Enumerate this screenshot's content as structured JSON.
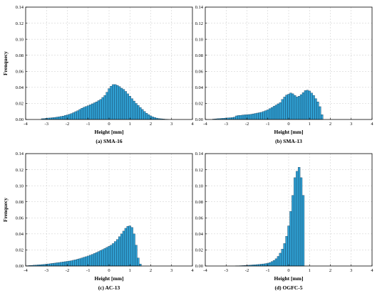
{
  "chart_data": [
    {
      "type": "bar",
      "caption": "(a) SMA-16",
      "xlabel": "Height [mm]",
      "ylabel": "Frenquecy",
      "xlim": [
        -4,
        4
      ],
      "ylim": [
        0,
        0.14
      ],
      "xticks": [
        -4,
        -3,
        -2,
        -1,
        0,
        1,
        2,
        3,
        4
      ],
      "yticks": [
        "0.00",
        "0.02",
        "0.04",
        "0.06",
        "0.08",
        "0.10",
        "0.12",
        "0.14"
      ],
      "grid": true,
      "bin_width": 0.1,
      "x": [
        -3.2,
        -3.1,
        -3.0,
        -2.9,
        -2.8,
        -2.7,
        -2.6,
        -2.5,
        -2.4,
        -2.3,
        -2.2,
        -2.1,
        -2.0,
        -1.9,
        -1.8,
        -1.7,
        -1.6,
        -1.5,
        -1.4,
        -1.3,
        -1.2,
        -1.1,
        -1.0,
        -0.9,
        -0.8,
        -0.7,
        -0.6,
        -0.5,
        -0.4,
        -0.3,
        -0.2,
        -0.1,
        0.0,
        0.1,
        0.2,
        0.3,
        0.4,
        0.5,
        0.6,
        0.7,
        0.8,
        0.9,
        1.0,
        1.1,
        1.2,
        1.3,
        1.4,
        1.5,
        1.6,
        1.7,
        1.8,
        1.9,
        2.0,
        2.1,
        2.2,
        2.3,
        2.4,
        2.5,
        2.6,
        2.7,
        2.8
      ],
      "values": [
        0.001,
        0.0012,
        0.0015,
        0.0018,
        0.002,
        0.0023,
        0.0026,
        0.003,
        0.0034,
        0.0038,
        0.0043,
        0.005,
        0.0057,
        0.0065,
        0.0074,
        0.0085,
        0.0098,
        0.011,
        0.0125,
        0.014,
        0.0152,
        0.0162,
        0.0172,
        0.0183,
        0.0195,
        0.0208,
        0.022,
        0.0235,
        0.025,
        0.0275,
        0.03,
        0.034,
        0.0385,
        0.0415,
        0.0435,
        0.0435,
        0.0425,
        0.041,
        0.039,
        0.0375,
        0.035,
        0.032,
        0.029,
        0.026,
        0.023,
        0.02,
        0.0175,
        0.015,
        0.0125,
        0.01,
        0.0078,
        0.006,
        0.0045,
        0.0032,
        0.0024,
        0.0017,
        0.0012,
        0.0009,
        0.0006,
        0.0004,
        0.0002
      ]
    },
    {
      "type": "bar",
      "caption": "(b) SMA-13",
      "xlabel": "Height [mm]",
      "ylabel": "",
      "xlim": [
        -4,
        4
      ],
      "ylim": [
        0,
        0.14
      ],
      "xticks": [
        -4,
        -3,
        -2,
        -1,
        0,
        1,
        2,
        3,
        4
      ],
      "yticks": [
        "0.00",
        "0.02",
        "0.04",
        "0.06",
        "0.08",
        "0.10",
        "0.12",
        "0.14"
      ],
      "grid": true,
      "bin_width": 0.1,
      "x": [
        -3.6,
        -3.5,
        -3.4,
        -3.3,
        -3.2,
        -3.1,
        -3.0,
        -2.9,
        -2.8,
        -2.7,
        -2.6,
        -2.5,
        -2.4,
        -2.3,
        -2.2,
        -2.1,
        -2.0,
        -1.9,
        -1.8,
        -1.7,
        -1.6,
        -1.5,
        -1.4,
        -1.3,
        -1.2,
        -1.1,
        -1.0,
        -0.9,
        -0.8,
        -0.7,
        -0.6,
        -0.5,
        -0.4,
        -0.3,
        -0.2,
        -0.1,
        0.0,
        0.1,
        0.2,
        0.3,
        0.4,
        0.5,
        0.6,
        0.7,
        0.8,
        0.9,
        1.0,
        1.1,
        1.2,
        1.3,
        1.4,
        1.5,
        1.6
      ],
      "values": [
        0.0005,
        0.0008,
        0.001,
        0.0012,
        0.0014,
        0.0016,
        0.0018,
        0.002,
        0.0022,
        0.0025,
        0.003,
        0.0045,
        0.005,
        0.0052,
        0.0055,
        0.0058,
        0.006,
        0.0062,
        0.0065,
        0.007,
        0.0075,
        0.008,
        0.0085,
        0.009,
        0.01,
        0.011,
        0.012,
        0.0135,
        0.015,
        0.0165,
        0.018,
        0.0195,
        0.021,
        0.025,
        0.028,
        0.0305,
        0.0315,
        0.033,
        0.032,
        0.03,
        0.028,
        0.029,
        0.031,
        0.0335,
        0.036,
        0.0365,
        0.0355,
        0.033,
        0.03,
        0.026,
        0.022,
        0.016,
        0.006
      ]
    },
    {
      "type": "bar",
      "caption": "(c) AC-13",
      "xlabel": "Height [mm]",
      "ylabel": "Frenquecy",
      "xlim": [
        -4,
        4
      ],
      "ylim": [
        0,
        0.14
      ],
      "xticks": [
        -4,
        -3,
        -2,
        -1,
        0,
        1,
        2,
        3,
        4
      ],
      "yticks": [
        "0.00",
        "0.02",
        "0.04",
        "0.06",
        "0.08",
        "0.10",
        "0.12",
        "0.14"
      ],
      "grid": true,
      "bin_width": 0.1,
      "x": [
        -3.9,
        -3.8,
        -3.7,
        -3.6,
        -3.5,
        -3.4,
        -3.3,
        -3.2,
        -3.1,
        -3.0,
        -2.9,
        -2.8,
        -2.7,
        -2.6,
        -2.5,
        -2.4,
        -2.3,
        -2.2,
        -2.1,
        -2.0,
        -1.9,
        -1.8,
        -1.7,
        -1.6,
        -1.5,
        -1.4,
        -1.3,
        -1.2,
        -1.1,
        -1.0,
        -0.9,
        -0.8,
        -0.7,
        -0.6,
        -0.5,
        -0.4,
        -0.3,
        -0.2,
        -0.1,
        0.0,
        0.1,
        0.2,
        0.3,
        0.4,
        0.5,
        0.6,
        0.7,
        0.8,
        0.9,
        1.0,
        1.1,
        1.2,
        1.3,
        1.4,
        1.5
      ],
      "values": [
        0.0004,
        0.0006,
        0.0008,
        0.001,
        0.0012,
        0.0014,
        0.0016,
        0.0018,
        0.002,
        0.0023,
        0.0026,
        0.003,
        0.0033,
        0.0036,
        0.004,
        0.0043,
        0.0047,
        0.005,
        0.0054,
        0.0058,
        0.0062,
        0.0066,
        0.0072,
        0.0078,
        0.0085,
        0.0092,
        0.01,
        0.0108,
        0.0116,
        0.0125,
        0.0135,
        0.0145,
        0.0156,
        0.0168,
        0.018,
        0.0192,
        0.0205,
        0.0218,
        0.0232,
        0.0245,
        0.026,
        0.028,
        0.0305,
        0.033,
        0.0365,
        0.04,
        0.0435,
        0.047,
        0.0495,
        0.05,
        0.048,
        0.04,
        0.026,
        0.01,
        0.0025
      ]
    },
    {
      "type": "bar",
      "caption": "(d) OGFC-5",
      "xlabel": "Height [mm]",
      "ylabel": "",
      "xlim": [
        -4,
        4
      ],
      "ylim": [
        0,
        0.14
      ],
      "xticks": [
        -4,
        -3,
        -2,
        -1,
        0,
        1,
        2,
        3,
        4
      ],
      "yticks": [
        "0.00",
        "0.02",
        "0.04",
        "0.06",
        "0.08",
        "0.10",
        "0.12",
        "0.14"
      ],
      "grid": true,
      "bin_width": 0.1,
      "x": [
        -2.5,
        -2.4,
        -2.3,
        -2.2,
        -2.1,
        -2.0,
        -1.9,
        -1.8,
        -1.7,
        -1.6,
        -1.5,
        -1.4,
        -1.3,
        -1.2,
        -1.1,
        -1.0,
        -0.9,
        -0.8,
        -0.7,
        -0.6,
        -0.5,
        -0.4,
        -0.3,
        -0.2,
        -0.1,
        0.0,
        0.1,
        0.2,
        0.3,
        0.4,
        0.5,
        0.6,
        0.7
      ],
      "values": [
        0.0002,
        0.0003,
        0.0004,
        0.0005,
        0.0006,
        0.0008,
        0.001,
        0.0012,
        0.0014,
        0.0016,
        0.0018,
        0.002,
        0.0023,
        0.0026,
        0.003,
        0.0035,
        0.0042,
        0.0055,
        0.007,
        0.009,
        0.012,
        0.016,
        0.021,
        0.028,
        0.037,
        0.05,
        0.068,
        0.088,
        0.11,
        0.118,
        0.123,
        0.11,
        0.088
      ]
    }
  ]
}
